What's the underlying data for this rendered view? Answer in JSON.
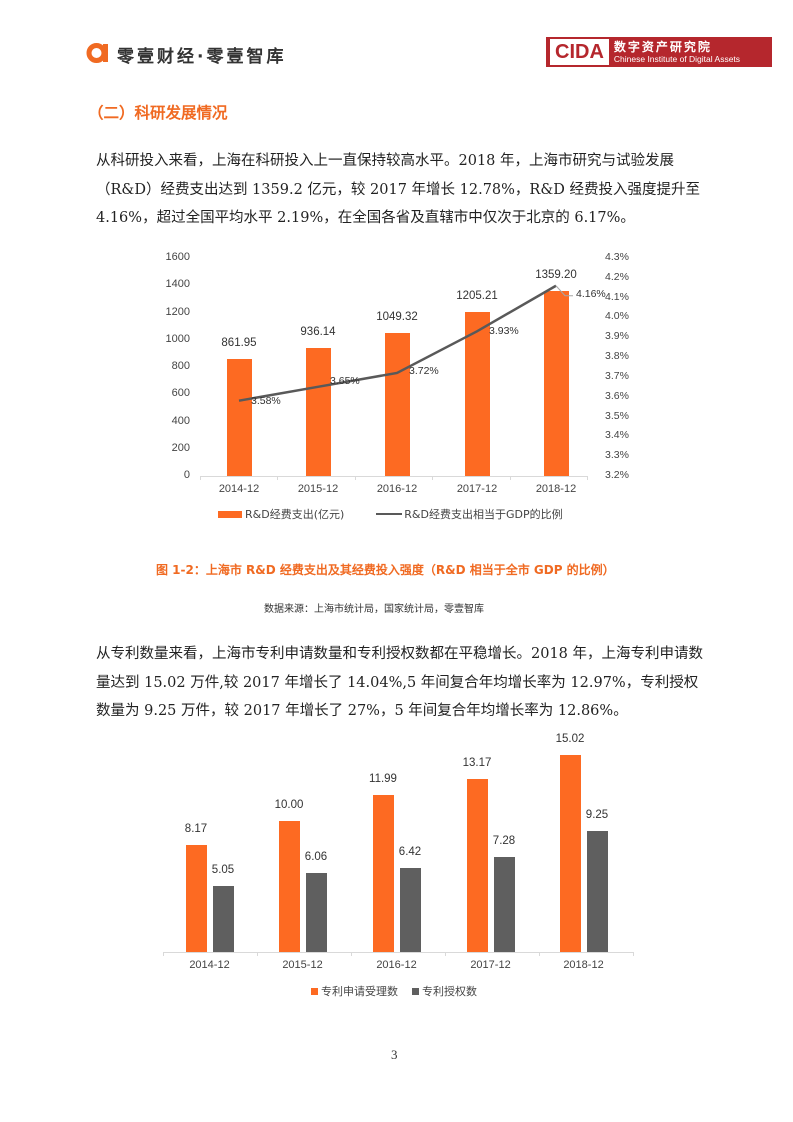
{
  "header": {
    "brand_logo_icon": "orange-alpha-logo",
    "brand_text": "零壹财经·零壹智库",
    "cida_abbr": "CIDA",
    "cida_cn": "数字资产研究院",
    "cida_en": "Chinese Institute of Digital Assets"
  },
  "section": {
    "title": "（二）科研发展情况"
  },
  "paragraphs": [
    "从科研投入来看，上海在科研投入上一直保持较高水平。2018 年，上海市研究与试验发展（R&D）经费支出达到 1359.2 亿元，较 2017 年增长 12.78%，R&D 经费投入强度提升至 4.16%，超过全国平均水平 2.19%，在全国各省及直辖市中仅次于北京的 6.17%。",
    "从专利数量来看，上海市专利申请数量和专利授权数都在平稳增长。2018 年，上海专利申请数量达到 15.02 万件,较 2017 年增长了 14.04%,5 年间复合年均增长率为 12.97%，专利授权数量为 9.25 万件，较 2017 年增长了 27%，5 年间复合年均增长率为 12.86%。"
  ],
  "figure1": {
    "caption": "图 1-2：上海市 R&D 经费支出及其经费投入强度（R&D 相当于全市 GDP 的比例）",
    "source": "数据来源：上海市统计局，国家统计局，零壹智库"
  },
  "chart_data": [
    {
      "type": "bar+line",
      "title": "",
      "categories": [
        "2014-12",
        "2015-12",
        "2016-12",
        "2017-12",
        "2018-12"
      ],
      "series": [
        {
          "name": "R&D经费支出(亿元)",
          "type": "bar",
          "axis": "left",
          "color": "#fd6a22",
          "values": [
            861.95,
            936.14,
            1049.32,
            1205.21,
            1359.2
          ],
          "labels": [
            "861.95",
            "936.14",
            "1049.32",
            "1205.21",
            "1359.20"
          ]
        },
        {
          "name": "R&D经费支出相当于GDP的比例",
          "type": "line",
          "axis": "right",
          "color": "#595959",
          "values": [
            3.58,
            3.65,
            3.72,
            3.93,
            4.16
          ],
          "labels": [
            "3.58%",
            "3.65%",
            "3.72%",
            "3.93%",
            "4.16%"
          ]
        }
      ],
      "yticks_left": [
        "0",
        "200",
        "400",
        "600",
        "800",
        "1000",
        "1200",
        "1400",
        "1600"
      ],
      "yticks_right": [
        "3.2%",
        "3.3%",
        "3.4%",
        "3.5%",
        "3.6%",
        "3.7%",
        "3.8%",
        "3.9%",
        "4.0%",
        "4.1%",
        "4.2%",
        "4.3%"
      ],
      "ylim_left": [
        0,
        1600
      ],
      "ylim_right": [
        3.2,
        4.3
      ],
      "legend_position": "bottom",
      "grid": false
    },
    {
      "type": "bar",
      "title": "",
      "categories": [
        "2014-12",
        "2015-12",
        "2016-12",
        "2017-12",
        "2018-12"
      ],
      "series": [
        {
          "name": "专利申请受理数",
          "color": "#fd6a22",
          "values": [
            8.17,
            10.0,
            11.99,
            13.17,
            15.02
          ],
          "labels": [
            "8.17",
            "10.00",
            "11.99",
            "13.17",
            "15.02"
          ]
        },
        {
          "name": "专利授权数",
          "color": "#5f5f5f",
          "values": [
            5.05,
            6.06,
            6.42,
            7.28,
            9.25
          ],
          "labels": [
            "5.05",
            "6.06",
            "6.42",
            "7.28",
            "9.25"
          ]
        }
      ],
      "legend_position": "bottom",
      "grid": false,
      "ylim": [
        0,
        16
      ]
    }
  ],
  "footer": {
    "page_number": "3"
  }
}
